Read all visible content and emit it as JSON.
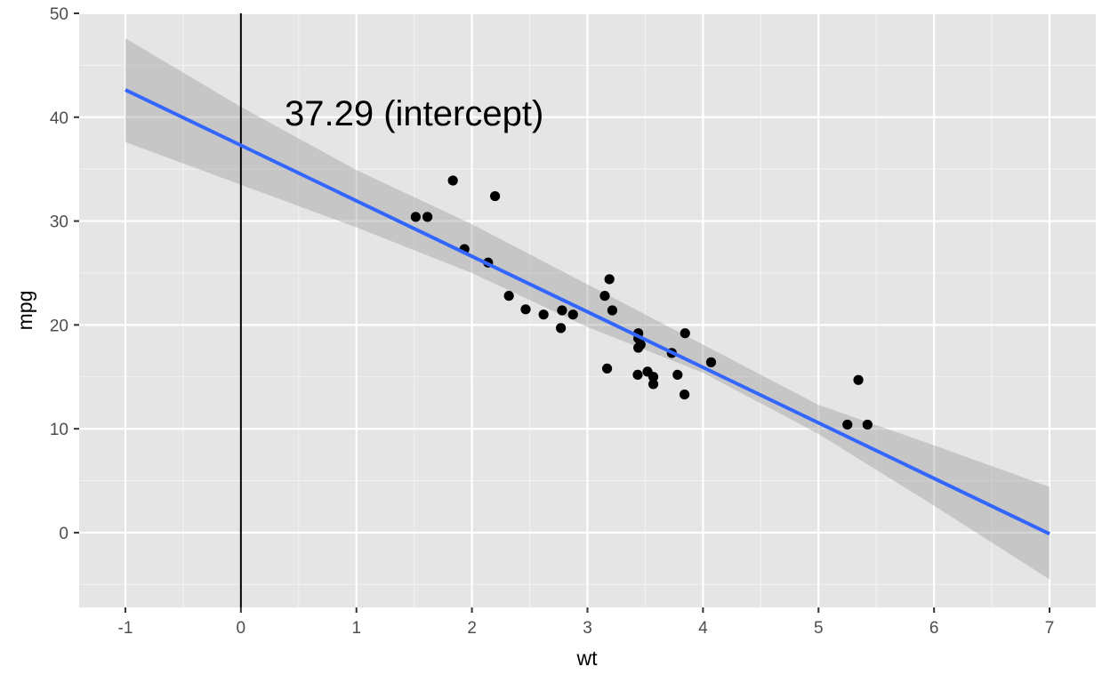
{
  "chart_data": {
    "type": "scatter",
    "title": "",
    "xlabel": "wt",
    "ylabel": "mpg",
    "xlim": [
      -1.4,
      7.4
    ],
    "ylim": [
      -7.2,
      50
    ],
    "x_ticks": [
      -1,
      0,
      1,
      2,
      3,
      4,
      5,
      6,
      7
    ],
    "y_ticks": [
      0,
      10,
      20,
      30,
      40,
      50
    ],
    "x_tick_labels": [
      "-1",
      "0",
      "1",
      "2",
      "3",
      "4",
      "5",
      "6",
      "7"
    ],
    "y_tick_labels": [
      "0",
      "10",
      "20",
      "30",
      "40",
      "50"
    ],
    "grid": true,
    "background": "#e5e5e5",
    "points": [
      {
        "x": 2.62,
        "y": 21.0
      },
      {
        "x": 2.875,
        "y": 21.0
      },
      {
        "x": 2.32,
        "y": 22.8
      },
      {
        "x": 3.215,
        "y": 21.4
      },
      {
        "x": 3.44,
        "y": 18.7
      },
      {
        "x": 3.46,
        "y": 18.1
      },
      {
        "x": 3.57,
        "y": 14.3
      },
      {
        "x": 3.19,
        "y": 24.4
      },
      {
        "x": 3.15,
        "y": 22.8
      },
      {
        "x": 3.44,
        "y": 19.2
      },
      {
        "x": 3.44,
        "y": 17.8
      },
      {
        "x": 4.07,
        "y": 16.4
      },
      {
        "x": 3.73,
        "y": 17.3
      },
      {
        "x": 3.78,
        "y": 15.2
      },
      {
        "x": 5.25,
        "y": 10.4
      },
      {
        "x": 5.424,
        "y": 10.4
      },
      {
        "x": 5.345,
        "y": 14.7
      },
      {
        "x": 2.2,
        "y": 32.4
      },
      {
        "x": 1.615,
        "y": 30.4
      },
      {
        "x": 1.835,
        "y": 33.9
      },
      {
        "x": 2.465,
        "y": 21.5
      },
      {
        "x": 3.52,
        "y": 15.5
      },
      {
        "x": 3.435,
        "y": 15.2
      },
      {
        "x": 3.84,
        "y": 13.3
      },
      {
        "x": 3.845,
        "y": 19.2
      },
      {
        "x": 1.935,
        "y": 27.3
      },
      {
        "x": 2.14,
        "y": 26.0
      },
      {
        "x": 1.513,
        "y": 30.4
      },
      {
        "x": 3.17,
        "y": 15.8
      },
      {
        "x": 2.77,
        "y": 19.7
      },
      {
        "x": 3.57,
        "y": 15.0
      },
      {
        "x": 2.78,
        "y": 21.4
      }
    ],
    "fit": {
      "type": "linear",
      "intercept": 37.29,
      "slope": -5.344,
      "x_range": [
        -1,
        7
      ],
      "ci_x": [
        -1,
        0,
        1,
        2,
        3,
        4,
        5,
        6,
        7
      ],
      "ci_lower": [
        37.6,
        33.5,
        29.4,
        25.0,
        19.8,
        15.4,
        9.5,
        2.6,
        -4.5
      ],
      "ci_upper": [
        47.6,
        41.0,
        34.9,
        29.7,
        23.9,
        18.1,
        12.3,
        8.4,
        4.4
      ],
      "line_color": "#3366ff",
      "band_color": "#999999"
    },
    "vline": {
      "x": 0,
      "color": "#000000"
    },
    "annotation": {
      "text": "37.29 (intercept)",
      "x": 1.5,
      "y": 39.2
    }
  }
}
